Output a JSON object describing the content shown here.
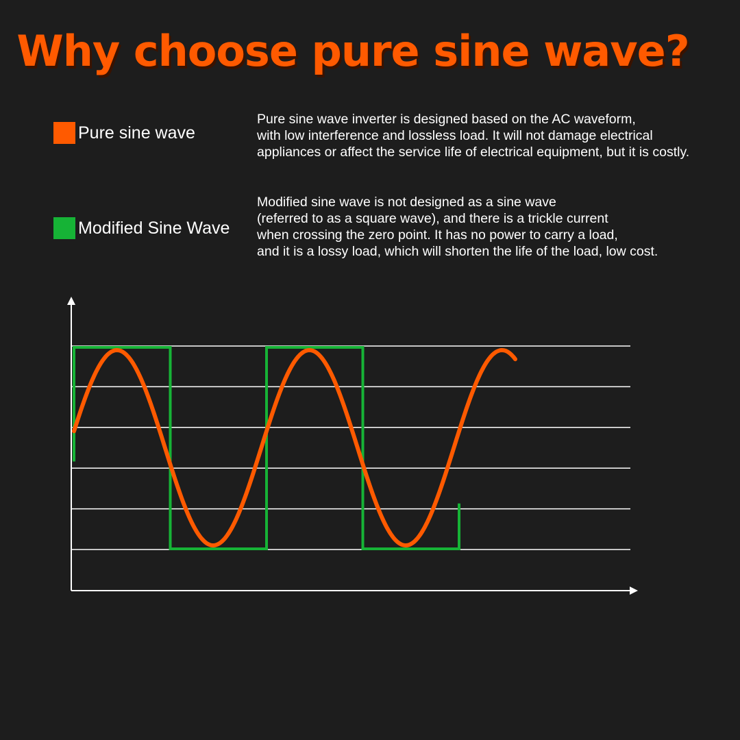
{
  "title": "Why choose pure sine wave?",
  "legend": [
    {
      "label": "Pure sine wave",
      "color": "#ff5a00",
      "description": [
        "Pure sine wave inverter is designed based on the AC waveform,",
        "with low interference and lossless load. It will not damage electrical",
        "appliances or affect the service life of electrical equipment, but it is costly."
      ]
    },
    {
      "label": "Modified Sine Wave",
      "color": "#16b336",
      "description": [
        "Modified sine wave is not designed as a sine wave",
        "(referred to as a square wave), and there is a trickle current",
        "when crossing the zero point. It has no power to carry a load,",
        "and it is a lossy load, which will shorten the life of the load, low cost."
      ]
    }
  ],
  "colors": {
    "background": "#1d1d1d",
    "axis": "#ffffff",
    "grid": "#ffffff"
  },
  "chart": {
    "gridlines": 6,
    "pure_sine": {
      "cycles_shown": 2.5,
      "starts_at_level": 0.5
    },
    "modified_sine": {
      "half_cycles": 4,
      "ends_rising_at_level": 0.2
    }
  }
}
